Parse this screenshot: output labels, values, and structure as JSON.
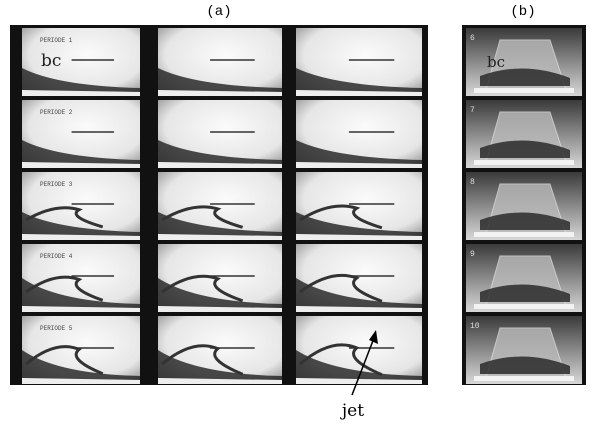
{
  "panel_a": {
    "label": "(a)",
    "bc": "bc",
    "periods": [
      "PERIODE 1",
      "PERIODE 2",
      "PERIODE 3",
      "PERIODE 4",
      "PERIODE 5"
    ]
  },
  "panel_b": {
    "label": "(b)",
    "bc": "bc",
    "frames": [
      "6",
      "7",
      "8",
      "9",
      "10"
    ]
  },
  "annotation": "jet"
}
